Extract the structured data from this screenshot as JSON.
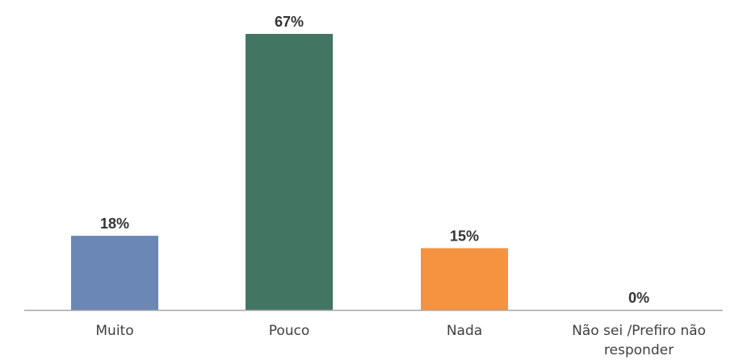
{
  "chart_data": {
    "type": "bar",
    "title": "",
    "xlabel": "",
    "ylabel": "",
    "ylim": [
      0,
      67
    ],
    "grid": false,
    "legend": "none",
    "categories": [
      "Muito",
      "Pouco",
      "Nada",
      "Não sei /Prefiro não responder"
    ],
    "category_lines": [
      [
        "Muito"
      ],
      [
        "Pouco"
      ],
      [
        "Nada"
      ],
      [
        "Não sei /Prefiro não",
        "responder"
      ]
    ],
    "values": [
      18,
      67,
      15,
      0
    ],
    "labels": [
      "18%",
      "67%",
      "15%",
      "0%"
    ],
    "colors": [
      "#6a87b5",
      "#427562",
      "#f69340",
      "#ffffff"
    ],
    "axis_color": "#a6a6a6"
  }
}
